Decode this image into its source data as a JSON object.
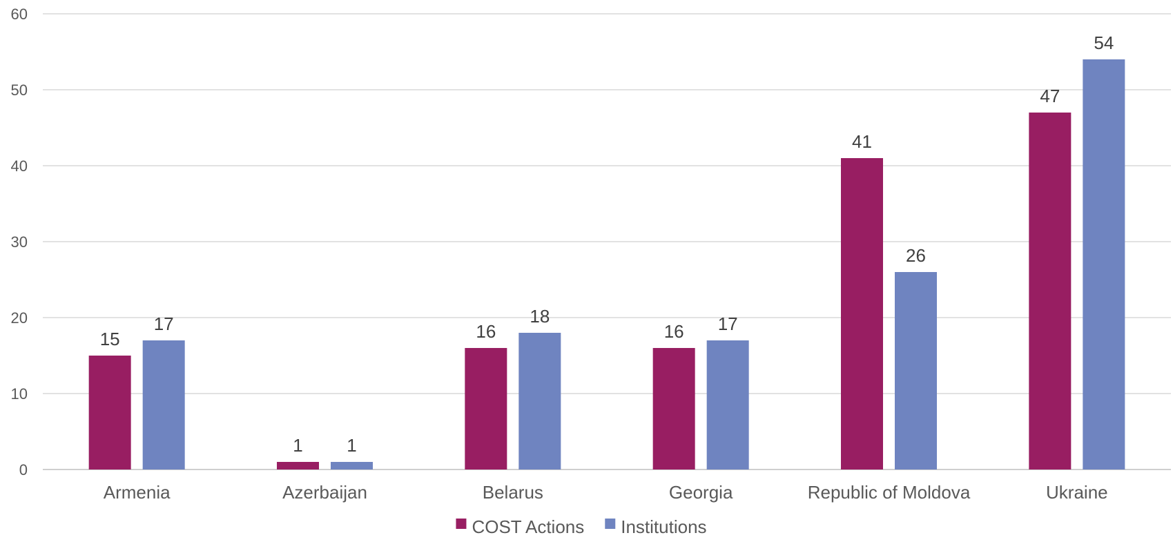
{
  "chart_data": {
    "type": "bar",
    "categories": [
      "Armenia",
      "Azerbaijan",
      "Belarus",
      "Georgia",
      "Republic of Moldova",
      "Ukraine"
    ],
    "series": [
      {
        "name": "COST Actions",
        "values": [
          15,
          1,
          16,
          16,
          41,
          47
        ],
        "color": "#981e62"
      },
      {
        "name": "Institutions",
        "values": [
          17,
          1,
          18,
          17,
          26,
          54
        ],
        "color": "#6f84c0"
      }
    ],
    "yticks": [
      0,
      10,
      20,
      30,
      40,
      50,
      60
    ],
    "ylim": [
      0,
      60
    ],
    "grid": true,
    "legend_position": "bottom-center",
    "data_labels": true
  }
}
